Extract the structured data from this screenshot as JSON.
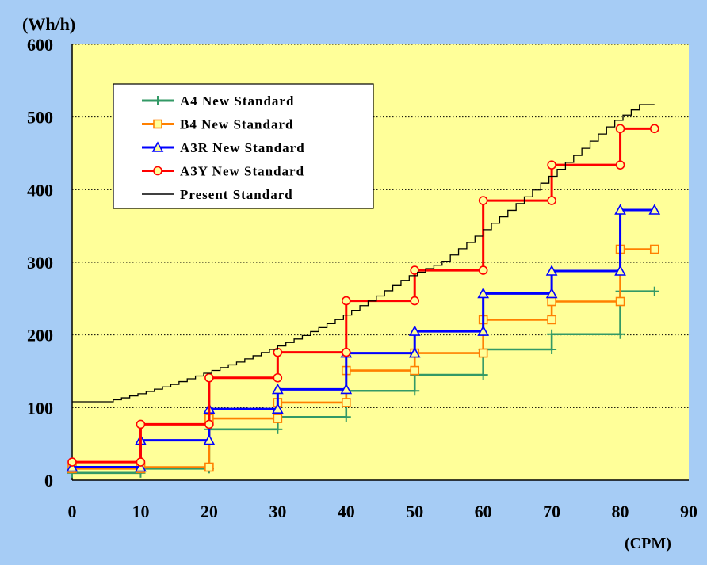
{
  "colors": {
    "background": "#A6CCF5",
    "plot_area": "#FFFF99",
    "grid": "#000000",
    "legend_bg": "#FFFFFF"
  },
  "chart_data": {
    "type": "line",
    "step": true,
    "xlabel": "(CPM)",
    "ylabel": "(Wh/h)",
    "xlim": [
      0,
      90
    ],
    "ylim": [
      0,
      600
    ],
    "xticks": [
      0,
      10,
      20,
      30,
      40,
      50,
      60,
      70,
      80,
      90
    ],
    "yticks": [
      0,
      100,
      200,
      300,
      400,
      500,
      600
    ],
    "grid": "horizontal dotted",
    "legend_position": "top-left",
    "series": [
      {
        "name": "A4 New Standard",
        "color": "#339966",
        "marker": "plus",
        "x": [
          0,
          10,
          20,
          30,
          40,
          50,
          60,
          70,
          80,
          85
        ],
        "y": [
          10,
          16,
          70,
          87,
          123,
          145,
          180,
          201,
          260,
          260
        ]
      },
      {
        "name": "B4 New Standard",
        "color": "#FF8000",
        "marker": "square",
        "x": [
          0,
          10,
          20,
          30,
          40,
          50,
          60,
          70,
          80,
          85
        ],
        "y": [
          16,
          18,
          85,
          107,
          151,
          175,
          221,
          246,
          318,
          318
        ]
      },
      {
        "name": "A3R New Standard",
        "color": "#0000FF",
        "marker": "triangle",
        "x": [
          0,
          10,
          20,
          30,
          40,
          50,
          60,
          70,
          80,
          85
        ],
        "y": [
          18,
          55,
          98,
          125,
          175,
          205,
          257,
          288,
          372,
          372
        ]
      },
      {
        "name": "A3Y New Standard",
        "color": "#FF0000",
        "marker": "circle",
        "x": [
          0,
          10,
          20,
          30,
          40,
          50,
          60,
          70,
          80,
          85
        ],
        "y": [
          25,
          77,
          141,
          176,
          247,
          289,
          385,
          434,
          484,
          484
        ]
      },
      {
        "name": "Present Standard",
        "color": "#000000",
        "marker": "none",
        "x": [
          0,
          6,
          10,
          15,
          20,
          25,
          30,
          35,
          40,
          45,
          50,
          55,
          60,
          65,
          70,
          75,
          80,
          85
        ],
        "y": [
          108,
          108,
          117,
          130,
          146,
          162,
          180,
          200,
          223,
          250,
          280,
          300,
          336,
          373,
          412,
          452,
          493,
          523
        ]
      }
    ]
  }
}
